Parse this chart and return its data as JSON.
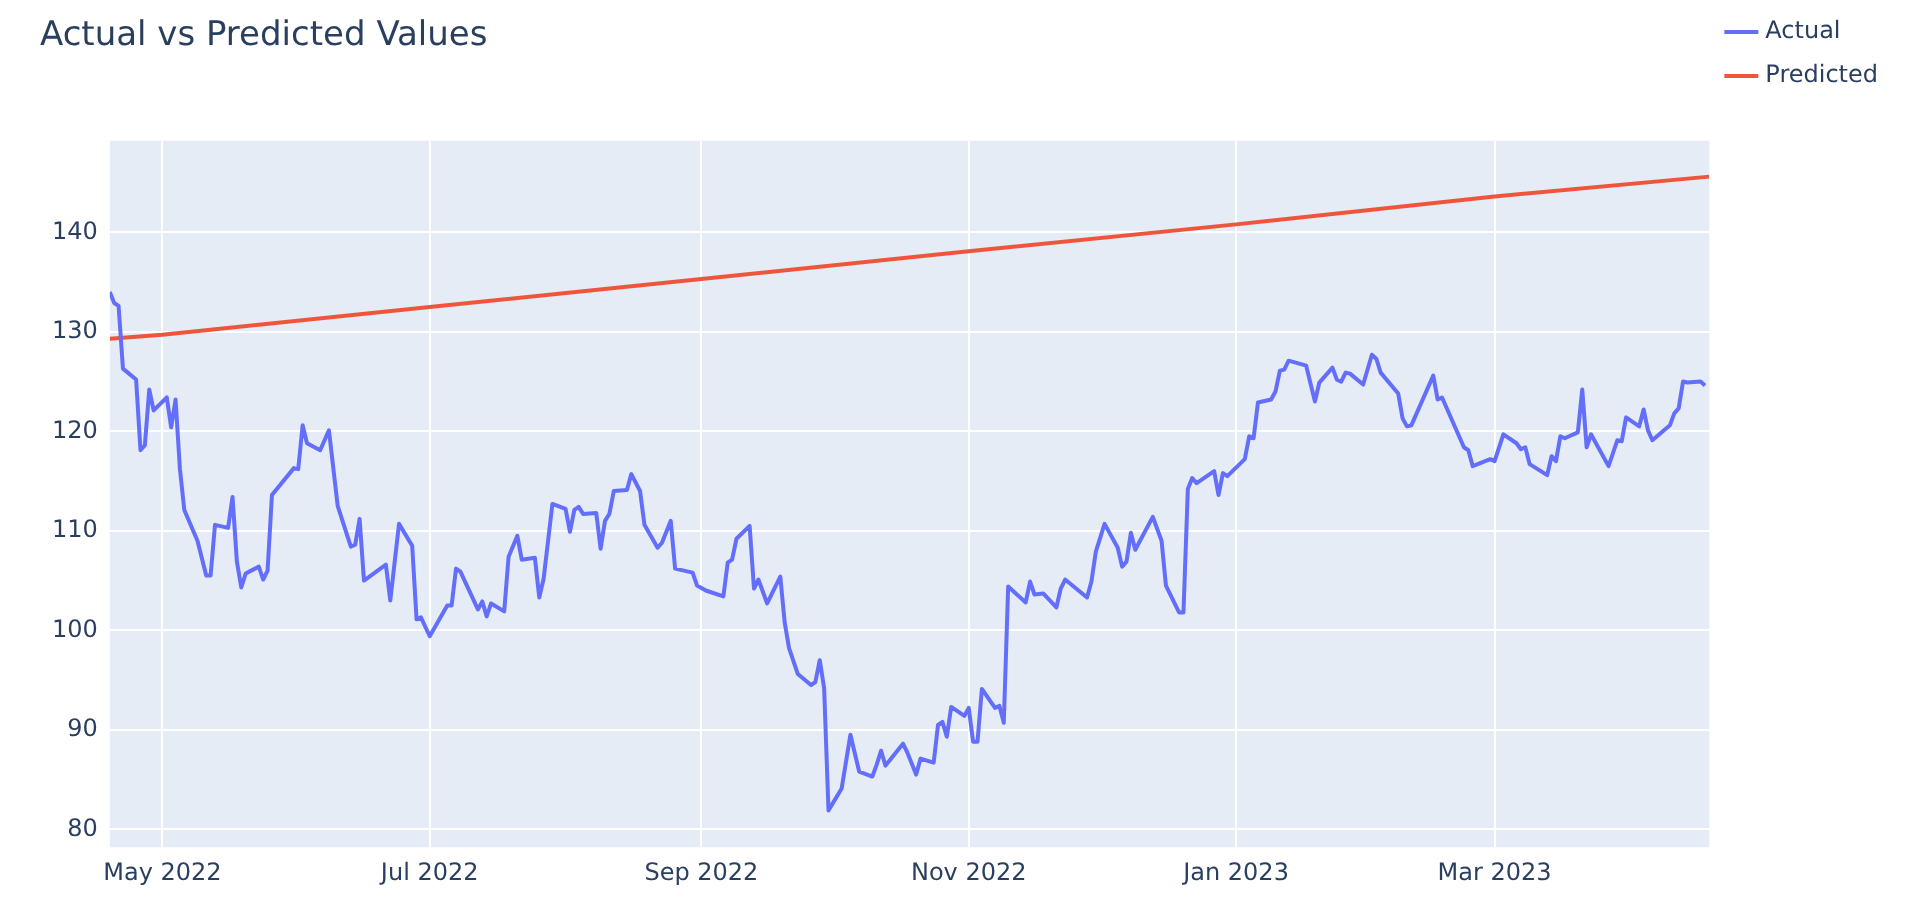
{
  "chart_data": {
    "type": "line",
    "title": "Actual vs Predicted Values",
    "legend": "top right",
    "grid": true,
    "marker": "none",
    "line_style": "solid",
    "xlim": [
      "2022-04-19",
      "2023-04-19"
    ],
    "xticks": [
      {
        "value": "2022-05-01",
        "label": "May 2022"
      },
      {
        "value": "2022-07-01",
        "label": "Jul 2022"
      },
      {
        "value": "2022-09-01",
        "label": "Sep 2022"
      },
      {
        "value": "2022-11-01",
        "label": "Nov 2022"
      },
      {
        "value": "2023-01-01",
        "label": "Jan 2023"
      },
      {
        "value": "2023-03-01",
        "label": "Mar 2023"
      }
    ],
    "ylim": [
      78.2,
      149.2
    ],
    "yticks": [
      80,
      90,
      100,
      110,
      120,
      130,
      140
    ],
    "series": [
      {
        "name": "Actual",
        "color": "#636efa",
        "x": [
          "2022-04-19",
          "2022-04-20",
          "2022-04-21",
          "2022-04-22",
          "2022-04-25",
          "2022-04-26",
          "2022-04-27",
          "2022-04-28",
          "2022-04-29",
          "2022-05-02",
          "2022-05-03",
          "2022-05-04",
          "2022-05-05",
          "2022-05-06",
          "2022-05-09",
          "2022-05-11",
          "2022-05-12",
          "2022-05-13",
          "2022-05-16",
          "2022-05-17",
          "2022-05-18",
          "2022-05-19",
          "2022-05-20",
          "2022-05-23",
          "2022-05-24",
          "2022-05-25",
          "2022-05-26",
          "2022-05-31",
          "2022-06-01",
          "2022-06-02",
          "2022-06-03",
          "2022-06-06",
          "2022-06-08",
          "2022-06-10",
          "2022-06-13",
          "2022-06-14",
          "2022-06-15",
          "2022-06-16",
          "2022-06-21",
          "2022-06-22",
          "2022-06-24",
          "2022-06-27",
          "2022-06-28",
          "2022-06-29",
          "2022-07-01",
          "2022-07-05",
          "2022-07-06",
          "2022-07-07",
          "2022-07-08",
          "2022-07-12",
          "2022-07-13",
          "2022-07-14",
          "2022-07-15",
          "2022-07-18",
          "2022-07-19",
          "2022-07-21",
          "2022-07-22",
          "2022-07-25",
          "2022-07-26",
          "2022-07-27",
          "2022-07-29",
          "2022-08-01",
          "2022-08-02",
          "2022-08-03",
          "2022-08-04",
          "2022-08-05",
          "2022-08-08",
          "2022-08-09",
          "2022-08-10",
          "2022-08-11",
          "2022-08-12",
          "2022-08-15",
          "2022-08-16",
          "2022-08-18",
          "2022-08-19",
          "2022-08-22",
          "2022-08-23",
          "2022-08-25",
          "2022-08-26",
          "2022-08-30",
          "2022-08-31",
          "2022-09-02",
          "2022-09-06",
          "2022-09-07",
          "2022-09-08",
          "2022-09-09",
          "2022-09-12",
          "2022-09-13",
          "2022-09-14",
          "2022-09-16",
          "2022-09-19",
          "2022-09-20",
          "2022-09-21",
          "2022-09-23",
          "2022-09-26",
          "2022-09-27",
          "2022-09-28",
          "2022-09-29",
          "2022-09-30",
          "2022-10-03",
          "2022-10-05",
          "2022-10-07",
          "2022-10-10",
          "2022-10-11",
          "2022-10-12",
          "2022-10-13",
          "2022-10-17",
          "2022-10-18",
          "2022-10-20",
          "2022-10-21",
          "2022-10-24",
          "2022-10-25",
          "2022-10-26",
          "2022-10-27",
          "2022-10-28",
          "2022-10-31",
          "2022-11-01",
          "2022-11-02",
          "2022-11-03",
          "2022-11-04",
          "2022-11-07",
          "2022-11-08",
          "2022-11-09",
          "2022-11-10",
          "2022-11-14",
          "2022-11-15",
          "2022-11-16",
          "2022-11-18",
          "2022-11-21",
          "2022-11-22",
          "2022-11-23",
          "2022-11-28",
          "2022-11-29",
          "2022-11-30",
          "2022-12-02",
          "2022-12-05",
          "2022-12-06",
          "2022-12-07",
          "2022-12-08",
          "2022-12-09",
          "2022-12-13",
          "2022-12-15",
          "2022-12-16",
          "2022-12-19",
          "2022-12-20",
          "2022-12-21",
          "2022-12-22",
          "2022-12-23",
          "2022-12-27",
          "2022-12-28",
          "2022-12-29",
          "2022-12-30",
          "2023-01-03",
          "2023-01-04",
          "2023-01-05",
          "2023-01-06",
          "2023-01-09",
          "2023-01-10",
          "2023-01-11",
          "2023-01-12",
          "2023-01-13",
          "2023-01-17",
          "2023-01-19",
          "2023-01-20",
          "2023-01-23",
          "2023-01-24",
          "2023-01-25",
          "2023-01-26",
          "2023-01-27",
          "2023-01-30",
          "2023-02-01",
          "2023-02-02",
          "2023-02-03",
          "2023-02-07",
          "2023-02-08",
          "2023-02-09",
          "2023-02-10",
          "2023-02-15",
          "2023-02-16",
          "2023-02-17",
          "2023-02-22",
          "2023-02-23",
          "2023-02-24",
          "2023-02-28",
          "2023-03-01",
          "2023-03-03",
          "2023-03-06",
          "2023-03-07",
          "2023-03-08",
          "2023-03-09",
          "2023-03-13",
          "2023-03-14",
          "2023-03-15",
          "2023-03-16",
          "2023-03-17",
          "2023-03-20",
          "2023-03-21",
          "2023-03-22",
          "2023-03-23",
          "2023-03-27",
          "2023-03-29",
          "2023-03-30",
          "2023-03-31",
          "2023-04-03",
          "2023-04-04",
          "2023-04-05",
          "2023-04-06",
          "2023-04-10",
          "2023-04-11",
          "2023-04-12",
          "2023-04-13",
          "2023-04-14",
          "2023-04-17",
          "2023-04-18"
        ],
        "values": [
          134.0,
          132.9,
          132.6,
          126.3,
          125.2,
          118.1,
          118.6,
          124.2,
          122.1,
          123.4,
          120.4,
          123.2,
          116.2,
          112.1,
          109.0,
          105.5,
          105.5,
          110.6,
          110.3,
          113.4,
          106.9,
          104.3,
          105.7,
          106.4,
          105.1,
          106.0,
          113.6,
          116.3,
          116.2,
          120.6,
          118.8,
          118.1,
          120.1,
          112.5,
          108.4,
          108.6,
          111.2,
          105.0,
          106.6,
          103.0,
          110.7,
          108.5,
          101.1,
          101.3,
          99.4,
          102.5,
          102.5,
          106.2,
          105.9,
          102.1,
          102.9,
          101.4,
          102.7,
          101.9,
          107.4,
          109.5,
          107.1,
          107.3,
          103.3,
          105.2,
          112.7,
          112.2,
          109.9,
          112.1,
          112.4,
          111.7,
          111.8,
          108.2,
          111.0,
          111.7,
          114.0,
          114.1,
          115.7,
          114.0,
          110.6,
          108.3,
          108.8,
          111.0,
          106.2,
          105.8,
          104.5,
          104.0,
          103.4,
          106.8,
          107.1,
          109.2,
          110.5,
          104.2,
          105.1,
          102.7,
          105.4,
          100.8,
          98.2,
          95.6,
          94.5,
          94.8,
          97.0,
          94.2,
          81.9,
          84.1,
          89.5,
          85.8,
          85.3,
          86.5,
          87.9,
          86.4,
          88.6,
          87.7,
          85.5,
          87.1,
          86.7,
          90.5,
          90.8,
          89.3,
          92.3,
          91.4,
          92.2,
          88.8,
          88.8,
          94.1,
          92.2,
          92.4,
          90.7,
          104.4,
          102.8,
          104.9,
          103.6,
          103.7,
          102.3,
          104.2,
          105.1,
          103.3,
          104.9,
          107.9,
          110.7,
          108.3,
          106.4,
          106.9,
          109.8,
          108.1,
          111.4,
          109.0,
          104.5,
          101.8,
          101.8,
          114.2,
          115.3,
          114.8,
          116.0,
          113.6,
          115.8,
          115.5,
          117.2,
          119.5,
          119.3,
          122.9,
          123.2,
          124.0,
          126.1,
          126.2,
          127.1,
          126.6,
          123.0,
          124.9,
          126.4,
          125.2,
          125.0,
          125.9,
          125.8,
          124.7,
          127.7,
          127.3,
          125.9,
          123.8,
          121.3,
          120.5,
          120.6,
          125.6,
          123.2,
          123.4,
          118.4,
          118.1,
          116.5,
          117.2,
          117.0,
          119.7,
          118.8,
          118.2,
          118.4,
          116.7,
          115.6,
          117.5,
          117.0,
          119.5,
          119.3,
          119.9,
          124.2,
          118.4,
          119.7,
          116.5,
          119.1,
          119.0,
          121.4,
          120.5,
          122.2,
          120.1,
          119.1,
          120.6,
          121.8,
          122.3,
          125.0,
          124.9,
          125.0,
          124.6
        ]
      },
      {
        "name": "Predicted",
        "color": "#ef553b",
        "x": [
          "2022-04-19",
          "2022-05-01",
          "2022-07-01",
          "2022-09-01",
          "2022-11-01",
          "2023-01-01",
          "2023-03-01",
          "2023-04-19"
        ],
        "values": [
          129.3,
          129.7,
          132.5,
          135.3,
          138.1,
          140.8,
          143.6,
          145.6
        ]
      }
    ]
  }
}
